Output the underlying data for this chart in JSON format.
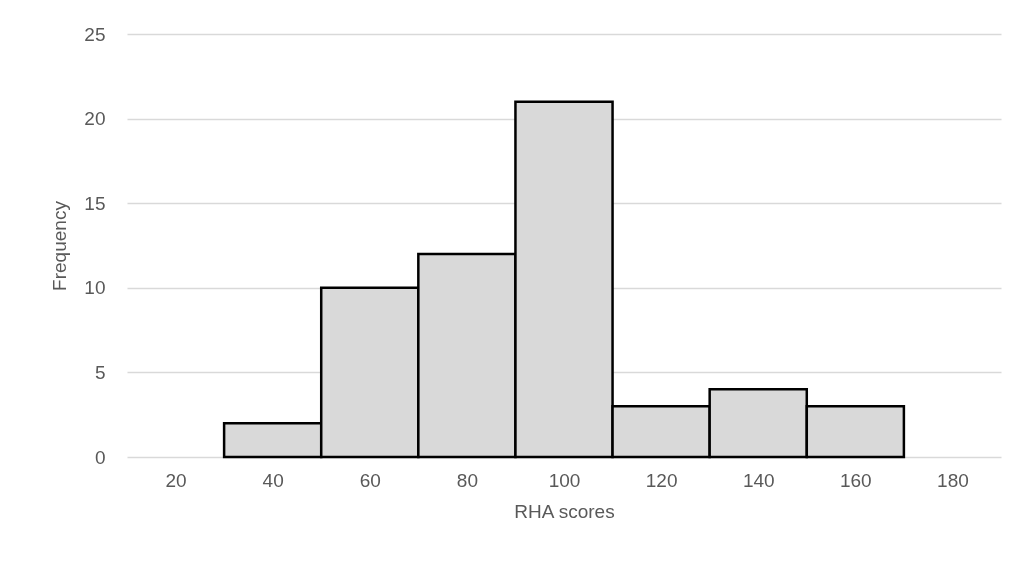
{
  "chart_data": {
    "type": "histogram",
    "xlabel": "RHA scores",
    "ylabel": "Frequency",
    "bins": [
      30,
      50,
      70,
      90,
      110,
      130,
      150,
      170
    ],
    "values": [
      2,
      10,
      12,
      21,
      3,
      4,
      3
    ],
    "color": "#d9d9d9",
    "xlim": [
      10,
      190
    ],
    "xticks": [
      20,
      40,
      60,
      80,
      100,
      120,
      140,
      160,
      180
    ],
    "ylim": [
      0,
      25
    ],
    "yticks": [
      0,
      5,
      10,
      15,
      20,
      25
    ],
    "grid": "y"
  }
}
